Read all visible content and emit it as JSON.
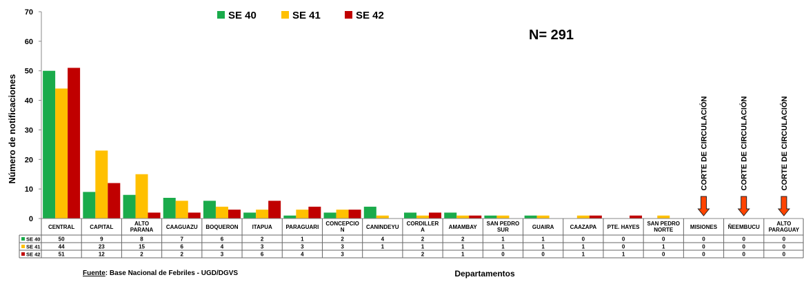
{
  "chart_data": {
    "type": "bar",
    "n_label": "N= 291",
    "ylabel": "Número de notificaciones",
    "xlabel": "Departamentos",
    "source_prefix": "Fuente",
    "source_text": ": Base Nacional de  Febriles - UGD/DGVS",
    "ylim": [
      0,
      70
    ],
    "yticks": [
      "0",
      "10",
      "20",
      "30",
      "40",
      "50",
      "60",
      "70"
    ],
    "grid": false,
    "legend_position": "top",
    "categories": [
      [
        "CENTRAL"
      ],
      [
        "CAPITAL"
      ],
      [
        "ALTO",
        "PARANA"
      ],
      [
        "CAAGUAZU"
      ],
      [
        "BOQUERON"
      ],
      [
        "ITAPUA"
      ],
      [
        "PARAGUARI"
      ],
      [
        "CONCEPCIO",
        "N"
      ],
      [
        "CANINDEYU"
      ],
      [
        "CORDILLER",
        "A"
      ],
      [
        "AMAMBAY"
      ],
      [
        "SAN PEDRO",
        "SUR"
      ],
      [
        "GUAIRA"
      ],
      [
        "CAAZAPA"
      ],
      [
        "PTE. HAYES"
      ],
      [
        "SAN PEDRO",
        "NORTE"
      ],
      [
        "MISIONES"
      ],
      [
        "ÑEEMBUCU"
      ],
      [
        "ALTO",
        "PARAGUAY"
      ]
    ],
    "series": [
      {
        "name": "SE 40",
        "color": "#1aab4b",
        "values": [
          50,
          9,
          8,
          7,
          6,
          2,
          1,
          2,
          4,
          2,
          2,
          1,
          1,
          0,
          0,
          0,
          0,
          0,
          0
        ],
        "table": [
          "50",
          "9",
          "8",
          "7",
          "6",
          "2",
          "1",
          "2",
          "4",
          "2",
          "2",
          "1",
          "1",
          "0",
          "0",
          "0",
          "0",
          "0",
          "0"
        ]
      },
      {
        "name": "SE 41",
        "color": "#ffc000",
        "values": [
          44,
          23,
          15,
          6,
          4,
          3,
          3,
          3,
          1,
          1,
          1,
          1,
          1,
          1,
          0,
          1,
          0,
          0,
          0
        ],
        "table": [
          "44",
          "23",
          "15",
          "6",
          "4",
          "3",
          "3",
          "3",
          "1",
          "1",
          "1",
          "1",
          "1",
          "1",
          "0",
          "1",
          "0",
          "0",
          "0"
        ]
      },
      {
        "name": "SE 42",
        "color": "#c00000",
        "values": [
          51,
          12,
          2,
          2,
          3,
          6,
          4,
          3,
          0,
          2,
          1,
          0,
          0,
          1,
          1,
          0,
          0,
          0,
          0
        ],
        "table": [
          "51",
          "12",
          "2",
          "2",
          "3",
          "6",
          "4",
          "3",
          "",
          "2",
          "1",
          "0",
          "0",
          "1",
          "1",
          "0",
          "0",
          "0",
          "0"
        ]
      }
    ],
    "annotations": [
      {
        "category": "MISIONES",
        "text": "CORTE DE CIRCULACIÓN",
        "arrow_color": "#ff4400"
      },
      {
        "category": "ÑEEMBUCU",
        "text": "CORTE DE CIRCULACIÓN",
        "arrow_color": "#ff4400"
      },
      {
        "category": "ALTO PARAGUAY",
        "text": "CORTE DE CIRCULACIÓN",
        "arrow_color": "#ff4400"
      }
    ]
  }
}
